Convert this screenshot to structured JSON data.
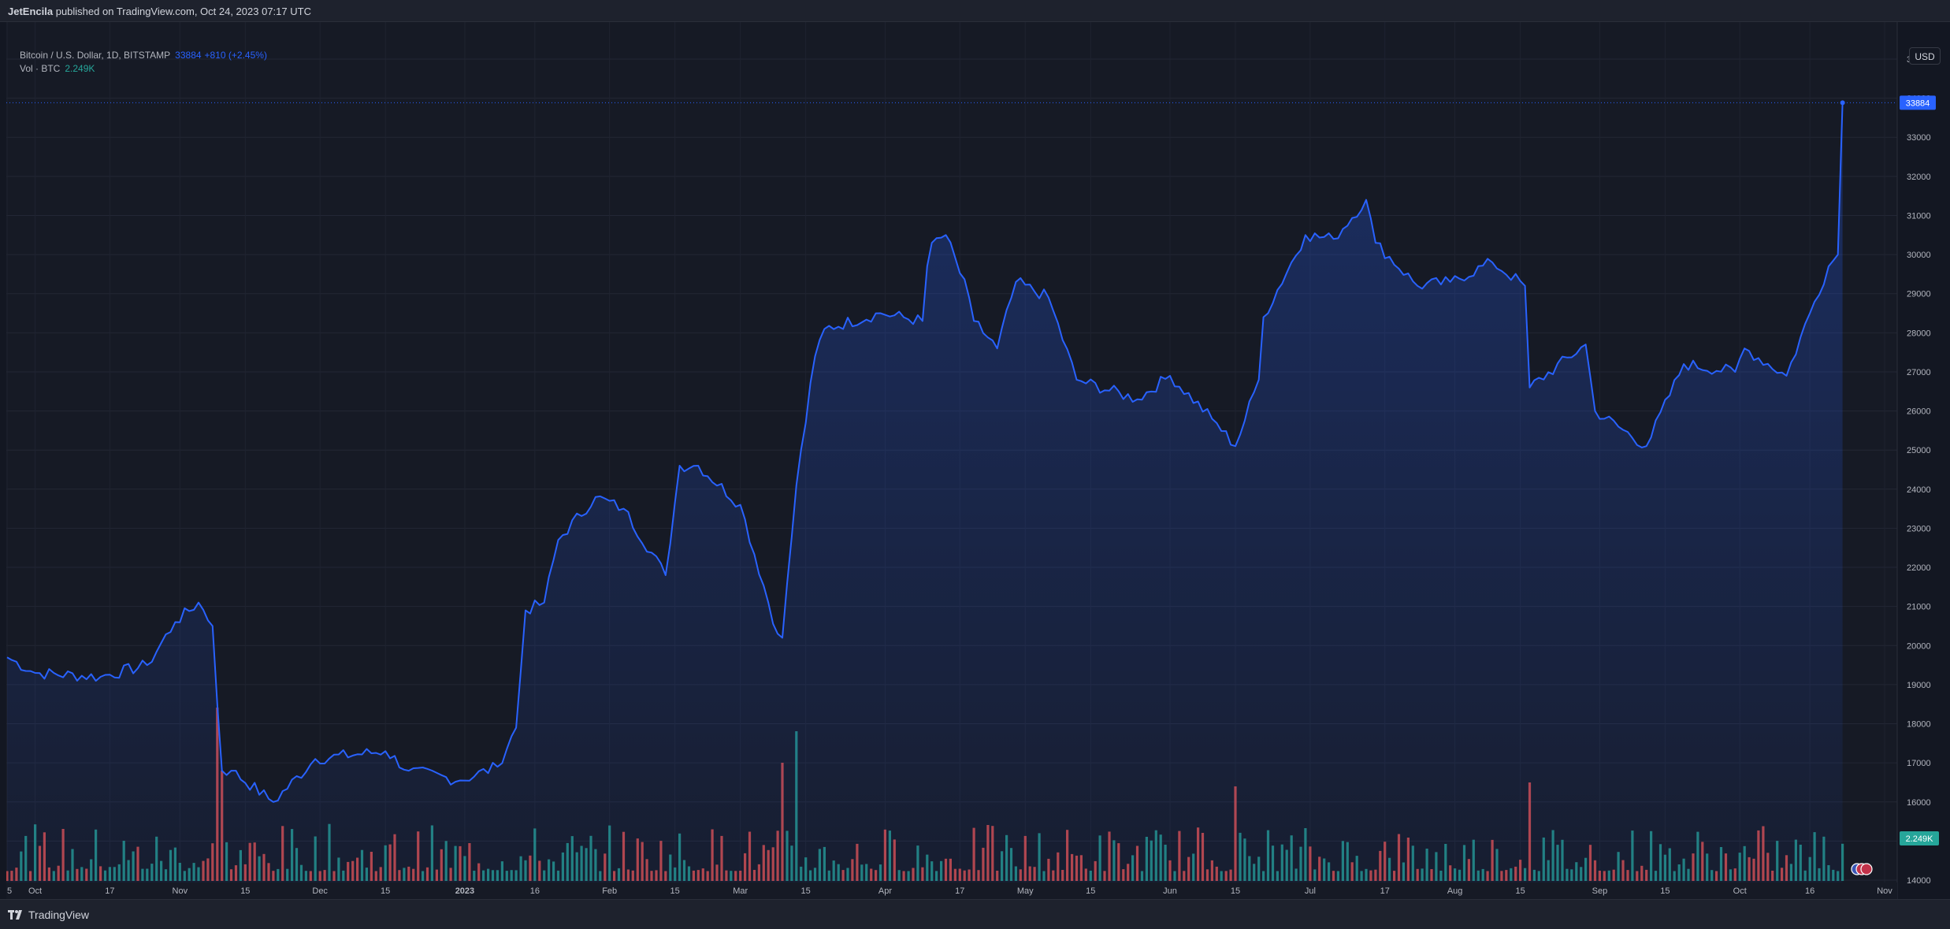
{
  "header": {
    "author": "JetEncila",
    "published_text": "published on TradingView.com, Oct 24, 2023 07:17 UTC"
  },
  "legend": {
    "symbol": "Bitcoin / U.S. Dollar, 1D, BITSTAMP",
    "price": "33884",
    "change": "+810 (+2.45%)",
    "volume_label": "Vol · BTC",
    "volume_value": "2.249K"
  },
  "currency_button": "USD",
  "footer": {
    "brand": "TradingView"
  },
  "colors": {
    "line": "#2962ff",
    "volume_up": "#26a69a",
    "volume_down": "#ef5350",
    "background": "#161a25",
    "axis_text": "#b2b5be"
  },
  "chart_data": {
    "type": "area",
    "title": "Bitcoin / U.S. Dollar, 1D, BITSTAMP",
    "ylim": [
      13900,
      36000
    ],
    "y_ticks": [
      14000,
      15000,
      16000,
      17000,
      18000,
      19000,
      20000,
      21000,
      22000,
      23000,
      24000,
      25000,
      26000,
      27000,
      28000,
      29000,
      30000,
      31000,
      32000,
      33000,
      34000,
      35000
    ],
    "x_labels": [
      "5",
      "Oct",
      "17",
      "Nov",
      "15",
      "Dec",
      "15",
      "2023",
      "16",
      "Feb",
      "15",
      "Mar",
      "15",
      "Apr",
      "17",
      "May",
      "15",
      "Jun",
      "15",
      "Jul",
      "17",
      "Aug",
      "15",
      "Sep",
      "15",
      "Oct",
      "16",
      "Nov"
    ],
    "last_price_label": "33884",
    "last_volume_label": "2.249K",
    "series": [
      {
        "name": "Bitcoin / U.S. Dollar",
        "x": [
          "2022-09-25",
          "2022-10-01",
          "2022-10-15",
          "2022-10-25",
          "2022-10-31",
          "2022-11-05",
          "2022-11-08",
          "2022-11-09",
          "2022-11-10",
          "2022-11-12",
          "2022-11-21",
          "2022-11-30",
          "2022-12-15",
          "2022-12-20",
          "2022-12-31",
          "2023-01-08",
          "2023-01-12",
          "2023-01-14",
          "2023-01-18",
          "2023-01-21",
          "2023-01-29",
          "2023-02-04",
          "2023-02-13",
          "2023-02-16",
          "2023-02-20",
          "2023-03-01",
          "2023-03-09",
          "2023-03-10",
          "2023-03-13",
          "2023-03-17",
          "2023-03-19",
          "2023-03-31",
          "2023-04-09",
          "2023-04-10",
          "2023-04-11",
          "2023-04-14",
          "2023-04-19",
          "2023-04-20",
          "2023-04-25",
          "2023-04-29",
          "2023-05-06",
          "2023-05-12",
          "2023-05-25",
          "2023-06-01",
          "2023-06-10",
          "2023-06-15",
          "2023-06-20",
          "2023-06-21",
          "2023-06-30",
          "2023-07-06",
          "2023-07-13",
          "2023-07-15",
          "2023-07-24",
          "2023-07-31",
          "2023-08-09",
          "2023-08-16",
          "2023-08-17",
          "2023-08-29",
          "2023-08-31",
          "2023-09-11",
          "2023-09-19",
          "2023-09-30",
          "2023-10-02",
          "2023-10-11",
          "2023-10-16",
          "2023-10-20",
          "2023-10-22",
          "2023-10-23"
        ],
        "values": [
          19700,
          19300,
          19200,
          19500,
          20600,
          21100,
          20500,
          18500,
          16800,
          16800,
          16000,
          17100,
          17300,
          16800,
          16550,
          16900,
          17900,
          20900,
          21100,
          22700,
          23800,
          23500,
          21800,
          24600,
          24600,
          23600,
          20300,
          20200,
          24100,
          27400,
          28100,
          28500,
          28300,
          29700,
          30300,
          30500,
          28900,
          28300,
          27600,
          29300,
          28900,
          26800,
          26300,
          26900,
          25800,
          25100,
          26800,
          28400,
          30500,
          30400,
          31400,
          30300,
          29200,
          29300,
          29800,
          29200,
          26600,
          27700,
          26000,
          25100,
          27200,
          27000,
          27600,
          26900,
          28500,
          29700,
          30000,
          33884
        ]
      }
    ],
    "volume": {
      "name": "Vol · BTC",
      "ylim": [
        0,
        50000
      ],
      "levels": [
        "spike on 2022-11-09",
        "spike on 2023-03-13",
        "2.249K on 2023-10-23"
      ]
    }
  }
}
